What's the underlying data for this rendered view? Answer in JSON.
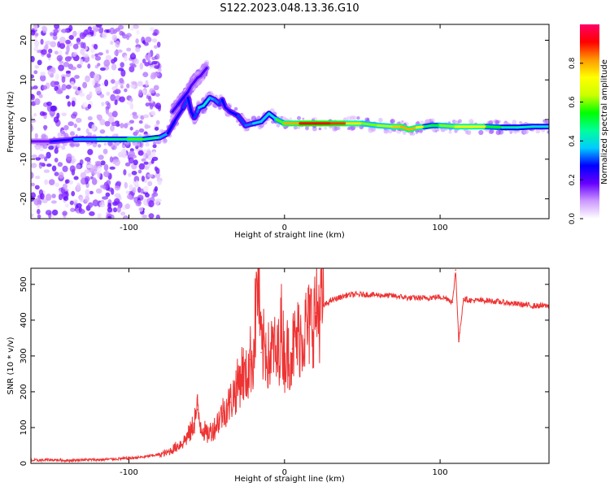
{
  "figure": {
    "title": "S122.2023.048.13.36.G10"
  },
  "chart_data": [
    {
      "type": "heatmap",
      "panel": "top",
      "title": "",
      "xlabel": "Height of straight line (km)",
      "ylabel": "Frequency (Hz)",
      "xlim": [
        -163,
        170
      ],
      "ylim": [
        -25,
        24
      ],
      "x_ticks": [
        -100,
        0,
        100
      ],
      "y_ticks": [
        -20,
        -10,
        0,
        10,
        20
      ],
      "colorbar": {
        "label": "Normalized spectral amplitude",
        "range": [
          0,
          1
        ],
        "ticks": [
          0.0,
          0.2,
          0.4,
          0.6,
          0.8
        ],
        "colors": [
          "#ffffff",
          "#cc99ff",
          "#6600ff",
          "#0000ff",
          "#00ccff",
          "#00ff99",
          "#00ff00",
          "#ccff00",
          "#ffff00",
          "#ff9900",
          "#ff0000",
          "#ff0066"
        ]
      },
      "ridge": {
        "x": [
          -163,
          -150,
          -135,
          -120,
          -100,
          -90,
          -80,
          -75,
          -70,
          -65,
          -62,
          -60,
          -58,
          -56,
          -55,
          -52,
          -50,
          -48,
          -45,
          -42,
          -40,
          -38,
          -35,
          -30,
          -25,
          -20,
          -15,
          -10,
          -5,
          0,
          10,
          20,
          30,
          40,
          50,
          60,
          70,
          75,
          80,
          85,
          90,
          95,
          100,
          110,
          120,
          130,
          140,
          150,
          160,
          170
        ],
        "frequency": [
          -5.5,
          -5.5,
          -5,
          -5,
          -5,
          -5,
          -4.5,
          -3.5,
          0,
          3,
          5.5,
          2,
          0.5,
          2,
          3,
          3.5,
          4.5,
          5.5,
          5,
          4,
          5,
          3,
          2,
          1,
          -1.5,
          -1,
          -0.5,
          1.5,
          0,
          -1,
          -1,
          -1,
          -1,
          -1,
          -1,
          -1.5,
          -1.8,
          -1.8,
          -2.5,
          -2,
          -1.8,
          -1.5,
          -1.5,
          -1.8,
          -1.8,
          -1.8,
          -2,
          -2,
          -1.8,
          -1.8
        ],
        "amplitude": [
          0.15,
          0.2,
          0.3,
          0.4,
          0.55,
          0.6,
          0.35,
          0.35,
          0.2,
          0.3,
          0.3,
          0.25,
          0.3,
          0.3,
          0.35,
          0.4,
          0.45,
          0.35,
          0.35,
          0.3,
          0.3,
          0.25,
          0.25,
          0.3,
          0.3,
          0.35,
          0.4,
          0.35,
          0.45,
          0.7,
          0.9,
          0.92,
          0.9,
          0.85,
          0.65,
          0.55,
          0.7,
          0.85,
          0.75,
          0.85,
          0.55,
          0.45,
          0.6,
          0.6,
          0.85,
          0.6,
          0.45,
          0.45,
          0.4,
          0.4
        ]
      },
      "branch": {
        "x": [
          -72,
          -68,
          -65,
          -62,
          -60,
          -58,
          -56,
          -54,
          -52,
          -50
        ],
        "frequency": [
          2,
          4,
          5.5,
          7,
          8.5,
          9.5,
          10.5,
          11,
          12,
          13
        ],
        "amplitude": [
          0.2,
          0.25,
          0.25,
          0.25,
          0.2,
          0.2,
          0.2,
          0.2,
          0.2,
          0.2
        ]
      },
      "noise_region": {
        "x_range": [
          -163,
          -80
        ],
        "frequency_range": [
          -25,
          24
        ],
        "amplitude_range": [
          0.02,
          0.2
        ]
      }
    },
    {
      "type": "line",
      "panel": "bottom",
      "title": "",
      "xlabel": "Height of straight line (km)",
      "ylabel": "SNR (10 * v/v)",
      "xlim": [
        -163,
        170
      ],
      "ylim": [
        0,
        545
      ],
      "x_ticks": [
        -100,
        0,
        100
      ],
      "y_ticks": [
        0,
        100,
        200,
        300,
        400,
        500
      ],
      "line_color": "#ee3333",
      "series": [
        {
          "name": "",
          "x": [
            -163,
            -150,
            -140,
            -130,
            -120,
            -110,
            -100,
            -95,
            -90,
            -85,
            -80,
            -75,
            -70,
            -65,
            -60,
            -56,
            -54,
            -50,
            -45,
            -40,
            -35,
            -30,
            -27,
            -25,
            -22,
            -20,
            -17,
            -15,
            -12,
            -10,
            -7,
            -5,
            -2,
            0,
            5,
            10,
            15,
            20,
            25,
            30,
            40,
            50,
            60,
            70,
            80,
            90,
            100,
            105,
            108,
            110,
            112,
            115,
            120,
            130,
            140,
            150,
            160,
            170
          ],
          "values": [
            8,
            10,
            8,
            10,
            10,
            12,
            14,
            16,
            18,
            22,
            25,
            30,
            45,
            60,
            90,
            150,
            110,
            80,
            100,
            140,
            170,
            220,
            260,
            230,
            290,
            300,
            540,
            310,
            330,
            290,
            330,
            280,
            380,
            300,
            320,
            360,
            380,
            420,
            440,
            455,
            470,
            472,
            470,
            468,
            462,
            462,
            465,
            460,
            450,
            540,
            340,
            460,
            455,
            455,
            450,
            445,
            440,
            440
          ]
        }
      ]
    }
  ]
}
